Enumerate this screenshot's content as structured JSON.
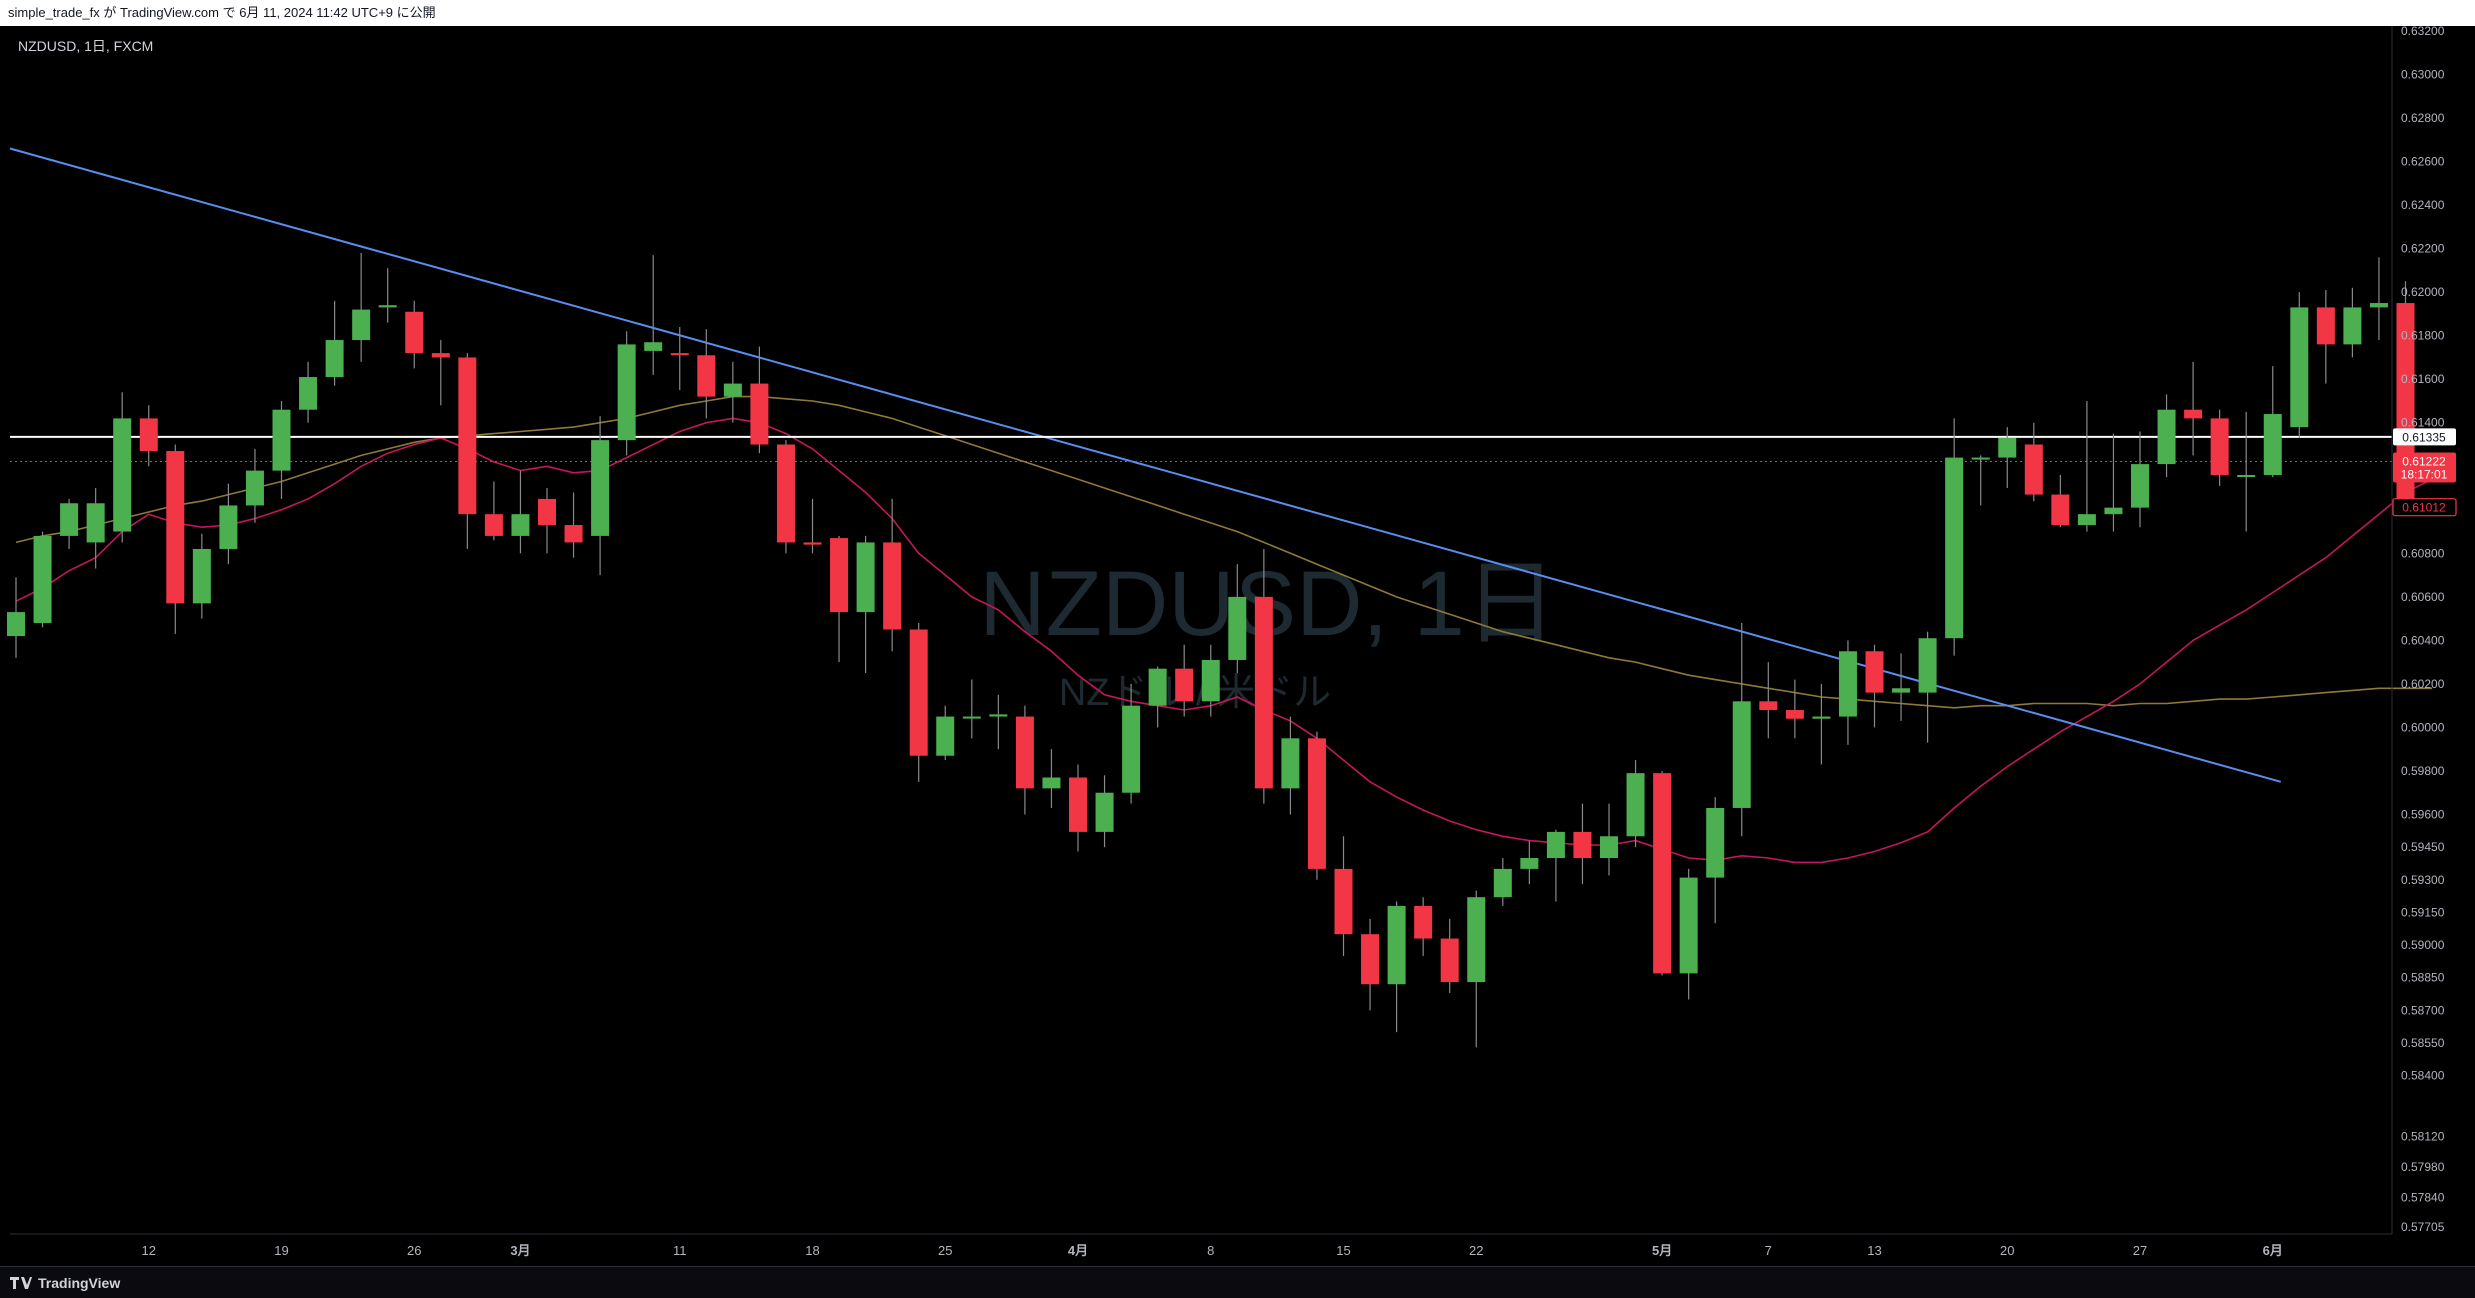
{
  "header": {
    "caption": "simple_trade_fx が TradingView.com で 6月 11, 2024 11:42 UTC+9 に公開"
  },
  "legend": {
    "symbol_line": "NZDUSD, 1日, FXCM"
  },
  "watermark": {
    "main": "NZDUSD, 1日",
    "sub": "NZドル / 米ドル"
  },
  "footer": {
    "brand": "TradingView"
  },
  "colors": {
    "up": "#4caf50",
    "down": "#f23645",
    "trendline": "#5b8def",
    "ma_short": "#c2185b",
    "ma_long": "#8d7a3a",
    "hline": "#ffffff",
    "background": "#000000"
  },
  "chart_data": {
    "type": "candlestick",
    "symbol": "NZDUSD",
    "timeframe": "1日",
    "source": "FXCM",
    "ylim": [
      0.577,
      0.632
    ],
    "y_ticks": [
      0.632,
      0.63,
      0.628,
      0.626,
      0.624,
      0.622,
      0.62,
      0.618,
      0.616,
      0.614,
      0.612,
      0.61,
      0.608,
      0.606,
      0.604,
      0.602,
      0.6,
      0.598,
      0.596,
      0.5945,
      0.593,
      0.5915,
      0.59,
      0.5885,
      0.587,
      0.5855,
      0.584,
      0.5812,
      0.5798,
      0.5784,
      0.57705
    ],
    "y_tick_labels": [
      "0.63200",
      "0.63000",
      "0.62800",
      "0.62600",
      "0.62400",
      "0.62200",
      "0.62000",
      "0.61800",
      "0.61600",
      "0.61400",
      "",
      "",
      "0.60800",
      "0.60600",
      "0.60400",
      "0.60200",
      "0.60000",
      "0.59800",
      "0.59600",
      "0.59450",
      "0.59300",
      "0.59150",
      "0.59000",
      "0.58850",
      "0.58700",
      "0.58550",
      "0.58400",
      "0.58120",
      "0.57980",
      "0.57840",
      "0.57705"
    ],
    "x_ticks": [
      {
        "index": 5,
        "label": "12"
      },
      {
        "index": 10,
        "label": "19"
      },
      {
        "index": 15,
        "label": "26"
      },
      {
        "index": 19,
        "label": "3月"
      },
      {
        "index": 25,
        "label": "11"
      },
      {
        "index": 30,
        "label": "18"
      },
      {
        "index": 35,
        "label": "25"
      },
      {
        "index": 40,
        "label": "4月"
      },
      {
        "index": 45,
        "label": "8"
      },
      {
        "index": 50,
        "label": "15"
      },
      {
        "index": 55,
        "label": "22"
      },
      {
        "index": 62,
        "label": "5月"
      },
      {
        "index": 66,
        "label": "7"
      },
      {
        "index": 70,
        "label": "13"
      },
      {
        "index": 75,
        "label": "20"
      },
      {
        "index": 80,
        "label": "27"
      },
      {
        "index": 85,
        "label": "6月"
      }
    ],
    "price_labels": [
      {
        "value": 0.61335,
        "text": "0.61335",
        "style": "white"
      },
      {
        "value": 0.61222,
        "text": "0.61222",
        "sub": "18:17:01",
        "style": "red"
      },
      {
        "value": 0.61012,
        "text": "0.61012",
        "style": "red-outline"
      }
    ],
    "horizontal_line": 0.61335,
    "current_price_line": 0.61222,
    "trendline": {
      "from": {
        "index": 0,
        "value": 0.6266
      },
      "to": {
        "index": 85,
        "value": 0.5975
      }
    },
    "candles": [
      {
        "o": 0.6042,
        "h": 0.6069,
        "l": 0.6032,
        "c": 0.6053
      },
      {
        "o": 0.6048,
        "h": 0.609,
        "l": 0.6046,
        "c": 0.6088
      },
      {
        "o": 0.6088,
        "h": 0.6105,
        "l": 0.6082,
        "c": 0.6103
      },
      {
        "o": 0.6085,
        "h": 0.611,
        "l": 0.6073,
        "c": 0.6103
      },
      {
        "o": 0.609,
        "h": 0.6154,
        "l": 0.6085,
        "c": 0.6142
      },
      {
        "o": 0.6142,
        "h": 0.6148,
        "l": 0.612,
        "c": 0.6127
      },
      {
        "o": 0.6127,
        "h": 0.613,
        "l": 0.6043,
        "c": 0.6057
      },
      {
        "o": 0.6057,
        "h": 0.6089,
        "l": 0.605,
        "c": 0.6082
      },
      {
        "o": 0.6082,
        "h": 0.6112,
        "l": 0.6075,
        "c": 0.6102
      },
      {
        "o": 0.6102,
        "h": 0.6128,
        "l": 0.6094,
        "c": 0.6118
      },
      {
        "o": 0.6118,
        "h": 0.615,
        "l": 0.6105,
        "c": 0.6146
      },
      {
        "o": 0.6146,
        "h": 0.6168,
        "l": 0.614,
        "c": 0.6161
      },
      {
        "o": 0.6161,
        "h": 0.6196,
        "l": 0.6157,
        "c": 0.6178
      },
      {
        "o": 0.6178,
        "h": 0.6218,
        "l": 0.6168,
        "c": 0.6192
      },
      {
        "o": 0.6193,
        "h": 0.6211,
        "l": 0.6186,
        "c": 0.6194
      },
      {
        "o": 0.6191,
        "h": 0.6196,
        "l": 0.6165,
        "c": 0.6172
      },
      {
        "o": 0.6172,
        "h": 0.6178,
        "l": 0.6148,
        "c": 0.617
      },
      {
        "o": 0.617,
        "h": 0.6172,
        "l": 0.6082,
        "c": 0.6098
      },
      {
        "o": 0.6098,
        "h": 0.6113,
        "l": 0.6086,
        "c": 0.6088
      },
      {
        "o": 0.6088,
        "h": 0.6118,
        "l": 0.608,
        "c": 0.6098
      },
      {
        "o": 0.6105,
        "h": 0.611,
        "l": 0.608,
        "c": 0.6093
      },
      {
        "o": 0.6093,
        "h": 0.6108,
        "l": 0.6078,
        "c": 0.6085
      },
      {
        "o": 0.6088,
        "h": 0.6143,
        "l": 0.607,
        "c": 0.6132
      },
      {
        "o": 0.6132,
        "h": 0.6182,
        "l": 0.6125,
        "c": 0.6176
      },
      {
        "o": 0.6173,
        "h": 0.6217,
        "l": 0.6162,
        "c": 0.6177
      },
      {
        "o": 0.6172,
        "h": 0.6184,
        "l": 0.6155,
        "c": 0.6171
      },
      {
        "o": 0.6171,
        "h": 0.6183,
        "l": 0.6142,
        "c": 0.6152
      },
      {
        "o": 0.6152,
        "h": 0.6168,
        "l": 0.614,
        "c": 0.6158
      },
      {
        "o": 0.6158,
        "h": 0.6175,
        "l": 0.6126,
        "c": 0.613
      },
      {
        "o": 0.613,
        "h": 0.6132,
        "l": 0.608,
        "c": 0.6085
      },
      {
        "o": 0.6085,
        "h": 0.6105,
        "l": 0.608,
        "c": 0.6084
      },
      {
        "o": 0.6087,
        "h": 0.6088,
        "l": 0.603,
        "c": 0.6053
      },
      {
        "o": 0.6053,
        "h": 0.6088,
        "l": 0.6025,
        "c": 0.6085
      },
      {
        "o": 0.6085,
        "h": 0.6105,
        "l": 0.6035,
        "c": 0.6045
      },
      {
        "o": 0.6045,
        "h": 0.6048,
        "l": 0.5975,
        "c": 0.5987
      },
      {
        "o": 0.5987,
        "h": 0.601,
        "l": 0.5985,
        "c": 0.6005
      },
      {
        "o": 0.6005,
        "h": 0.6022,
        "l": 0.5995,
        "c": 0.6005
      },
      {
        "o": 0.6005,
        "h": 0.6015,
        "l": 0.599,
        "c": 0.6006
      },
      {
        "o": 0.6005,
        "h": 0.601,
        "l": 0.596,
        "c": 0.5972
      },
      {
        "o": 0.5972,
        "h": 0.599,
        "l": 0.5963,
        "c": 0.5977
      },
      {
        "o": 0.5977,
        "h": 0.5983,
        "l": 0.5943,
        "c": 0.5952
      },
      {
        "o": 0.5952,
        "h": 0.5978,
        "l": 0.5945,
        "c": 0.597
      },
      {
        "o": 0.597,
        "h": 0.602,
        "l": 0.5965,
        "c": 0.601
      },
      {
        "o": 0.601,
        "h": 0.6028,
        "l": 0.6,
        "c": 0.6027
      },
      {
        "o": 0.6027,
        "h": 0.6038,
        "l": 0.6005,
        "c": 0.6012
      },
      {
        "o": 0.6012,
        "h": 0.6038,
        "l": 0.6005,
        "c": 0.6031
      },
      {
        "o": 0.6031,
        "h": 0.6075,
        "l": 0.6025,
        "c": 0.606
      },
      {
        "o": 0.606,
        "h": 0.6082,
        "l": 0.5965,
        "c": 0.5972
      },
      {
        "o": 0.5972,
        "h": 0.6005,
        "l": 0.596,
        "c": 0.5995
      },
      {
        "o": 0.5995,
        "h": 0.5998,
        "l": 0.593,
        "c": 0.5935
      },
      {
        "o": 0.5935,
        "h": 0.595,
        "l": 0.5895,
        "c": 0.5905
      },
      {
        "o": 0.5905,
        "h": 0.5912,
        "l": 0.587,
        "c": 0.5882
      },
      {
        "o": 0.5882,
        "h": 0.592,
        "l": 0.586,
        "c": 0.5918
      },
      {
        "o": 0.5918,
        "h": 0.5922,
        "l": 0.5895,
        "c": 0.5903
      },
      {
        "o": 0.5903,
        "h": 0.5912,
        "l": 0.5878,
        "c": 0.5883
      },
      {
        "o": 0.5883,
        "h": 0.5925,
        "l": 0.5853,
        "c": 0.5922
      },
      {
        "o": 0.5922,
        "h": 0.594,
        "l": 0.5918,
        "c": 0.5935
      },
      {
        "o": 0.5935,
        "h": 0.5948,
        "l": 0.5928,
        "c": 0.594
      },
      {
        "o": 0.594,
        "h": 0.5953,
        "l": 0.592,
        "c": 0.5952
      },
      {
        "o": 0.5952,
        "h": 0.5965,
        "l": 0.5928,
        "c": 0.594
      },
      {
        "o": 0.594,
        "h": 0.5965,
        "l": 0.5932,
        "c": 0.595
      },
      {
        "o": 0.595,
        "h": 0.5985,
        "l": 0.5945,
        "c": 0.5979
      },
      {
        "o": 0.5979,
        "h": 0.598,
        "l": 0.5886,
        "c": 0.5887
      },
      {
        "o": 0.5887,
        "h": 0.5935,
        "l": 0.5875,
        "c": 0.5931
      },
      {
        "o": 0.5931,
        "h": 0.5968,
        "l": 0.591,
        "c": 0.5963
      },
      {
        "o": 0.5963,
        "h": 0.6048,
        "l": 0.595,
        "c": 0.6012
      },
      {
        "o": 0.6012,
        "h": 0.603,
        "l": 0.5995,
        "c": 0.6008
      },
      {
        "o": 0.6008,
        "h": 0.6022,
        "l": 0.5995,
        "c": 0.6004
      },
      {
        "o": 0.6004,
        "h": 0.602,
        "l": 0.5983,
        "c": 0.6005
      },
      {
        "o": 0.6005,
        "h": 0.604,
        "l": 0.5992,
        "c": 0.6035
      },
      {
        "o": 0.6035,
        "h": 0.6038,
        "l": 0.6,
        "c": 0.6016
      },
      {
        "o": 0.6016,
        "h": 0.6034,
        "l": 0.6003,
        "c": 0.6018
      },
      {
        "o": 0.6016,
        "h": 0.6044,
        "l": 0.5993,
        "c": 0.6041
      },
      {
        "o": 0.6041,
        "h": 0.6142,
        "l": 0.6033,
        "c": 0.6124
      },
      {
        "o": 0.6124,
        "h": 0.6125,
        "l": 0.6102,
        "c": 0.6124
      },
      {
        "o": 0.6124,
        "h": 0.6138,
        "l": 0.611,
        "c": 0.6133
      },
      {
        "o": 0.613,
        "h": 0.614,
        "l": 0.6104,
        "c": 0.6107
      },
      {
        "o": 0.6107,
        "h": 0.6116,
        "l": 0.6092,
        "c": 0.6093
      },
      {
        "o": 0.6093,
        "h": 0.615,
        "l": 0.609,
        "c": 0.6098
      },
      {
        "o": 0.6098,
        "h": 0.6135,
        "l": 0.609,
        "c": 0.6101
      },
      {
        "o": 0.6101,
        "h": 0.6136,
        "l": 0.6092,
        "c": 0.6121
      },
      {
        "o": 0.6121,
        "h": 0.6153,
        "l": 0.6115,
        "c": 0.6146
      },
      {
        "o": 0.6146,
        "h": 0.6168,
        "l": 0.6125,
        "c": 0.6142
      },
      {
        "o": 0.6142,
        "h": 0.6146,
        "l": 0.6111,
        "c": 0.6116
      },
      {
        "o": 0.6116,
        "h": 0.6145,
        "l": 0.609,
        "c": 0.6116
      },
      {
        "o": 0.6116,
        "h": 0.6166,
        "l": 0.6115,
        "c": 0.6144
      },
      {
        "o": 0.6138,
        "h": 0.62,
        "l": 0.6133,
        "c": 0.6193
      },
      {
        "o": 0.6193,
        "h": 0.6201,
        "l": 0.6158,
        "c": 0.6176
      },
      {
        "o": 0.6176,
        "h": 0.6202,
        "l": 0.617,
        "c": 0.6193
      },
      {
        "o": 0.6193,
        "h": 0.6216,
        "l": 0.6178,
        "c": 0.6195
      },
      {
        "o": 0.6195,
        "h": 0.6205,
        "l": 0.6101,
        "c": 0.6101
      }
    ],
    "ma_short": [
      0.6058,
      0.6064,
      0.6072,
      0.6078,
      0.609,
      0.6098,
      0.6094,
      0.6092,
      0.6093,
      0.6096,
      0.61,
      0.6105,
      0.6112,
      0.612,
      0.6126,
      0.613,
      0.6133,
      0.6128,
      0.6122,
      0.6118,
      0.612,
      0.6117,
      0.6118,
      0.6124,
      0.613,
      0.6136,
      0.614,
      0.6142,
      0.614,
      0.6135,
      0.6128,
      0.6118,
      0.6108,
      0.6096,
      0.608,
      0.607,
      0.606,
      0.6054,
      0.6044,
      0.6035,
      0.6024,
      0.6015,
      0.6012,
      0.601,
      0.6008,
      0.601,
      0.6014,
      0.6008,
      0.6003,
      0.5995,
      0.5985,
      0.5975,
      0.5968,
      0.5962,
      0.5957,
      0.5953,
      0.595,
      0.5948,
      0.5947,
      0.5946,
      0.5946,
      0.5948,
      0.5944,
      0.594,
      0.5939,
      0.5941,
      0.594,
      0.5938,
      0.5938,
      0.594,
      0.5943,
      0.5947,
      0.5952,
      0.5963,
      0.5973,
      0.5982,
      0.599,
      0.5998,
      0.6005,
      0.6012,
      0.602,
      0.603,
      0.604,
      0.6047,
      0.6054,
      0.6062,
      0.607,
      0.6078,
      0.6088,
      0.6098,
      0.6108,
      0.6114
    ],
    "ma_long": [
      0.6085,
      0.6088,
      0.609,
      0.6093,
      0.6096,
      0.6099,
      0.6102,
      0.6104,
      0.6107,
      0.611,
      0.6113,
      0.6117,
      0.6121,
      0.6125,
      0.6128,
      0.6131,
      0.6133,
      0.6134,
      0.6135,
      0.6136,
      0.6137,
      0.6138,
      0.614,
      0.6142,
      0.6145,
      0.6148,
      0.615,
      0.6152,
      0.6152,
      0.6151,
      0.615,
      0.6148,
      0.6145,
      0.6142,
      0.6138,
      0.6134,
      0.613,
      0.6126,
      0.6122,
      0.6118,
      0.6114,
      0.611,
      0.6106,
      0.6102,
      0.6098,
      0.6094,
      0.609,
      0.6085,
      0.608,
      0.6075,
      0.607,
      0.6065,
      0.606,
      0.6056,
      0.6052,
      0.6048,
      0.6044,
      0.6041,
      0.6038,
      0.6035,
      0.6032,
      0.603,
      0.6027,
      0.6024,
      0.6022,
      0.602,
      0.6018,
      0.6016,
      0.6014,
      0.6013,
      0.6012,
      0.6011,
      0.601,
      0.6009,
      0.601,
      0.601,
      0.6011,
      0.6011,
      0.6011,
      0.601,
      0.6011,
      0.6011,
      0.6012,
      0.6013,
      0.6013,
      0.6014,
      0.6015,
      0.6016,
      0.6017,
      0.6018,
      0.6018,
      0.6018
    ]
  }
}
